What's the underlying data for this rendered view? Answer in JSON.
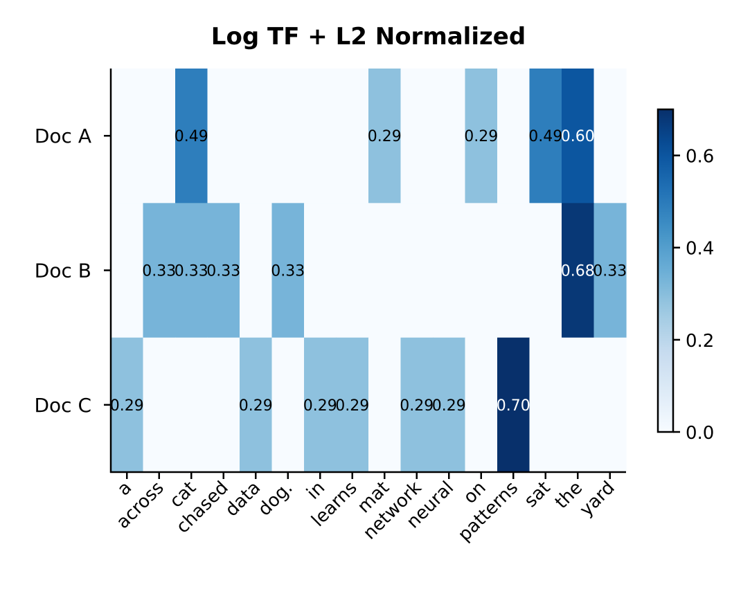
{
  "chart_data": {
    "type": "heatmap",
    "title": "Log TF + L2 Normalized",
    "rows": [
      "Doc A",
      "Doc B",
      "Doc C"
    ],
    "columns": [
      "a",
      "across",
      "cat",
      "chased",
      "data",
      "dog.",
      "in",
      "learns",
      "mat",
      "network",
      "neural",
      "on",
      "patterns",
      "sat",
      "the",
      "yard"
    ],
    "values": [
      [
        0,
        0,
        0.49,
        0,
        0,
        0,
        0,
        0,
        0.29,
        0,
        0,
        0.29,
        0,
        0.49,
        0.6,
        0
      ],
      [
        0,
        0.33,
        0.33,
        0.33,
        0,
        0.33,
        0,
        0,
        0,
        0,
        0,
        0,
        0,
        0,
        0.68,
        0.33
      ],
      [
        0.29,
        0,
        0,
        0,
        0.29,
        0,
        0.29,
        0.29,
        0,
        0.29,
        0.29,
        0,
        0.7,
        0,
        0,
        0
      ]
    ],
    "labels": [
      [
        "",
        "",
        "0.49",
        "",
        "",
        "",
        "",
        "",
        "0.29",
        "",
        "",
        "0.29",
        "",
        "0.49",
        "0.60",
        ""
      ],
      [
        "",
        "0.33",
        "0.33",
        "0.33",
        "",
        "0.33",
        "",
        "",
        "",
        "",
        "",
        "",
        "",
        "",
        "0.68",
        "0.33"
      ],
      [
        "0.29",
        "",
        "",
        "",
        "0.29",
        "",
        "0.29",
        "0.29",
        "",
        "0.29",
        "0.29",
        "",
        "0.70",
        "",
        "",
        ""
      ]
    ],
    "colormap": "Blues",
    "vmin": 0,
    "vmax": 0.7,
    "colorbar_ticks": [
      "0.0",
      "0.2",
      "0.4",
      "0.6"
    ],
    "colorbar_tick_values": [
      0,
      0.2,
      0.4,
      0.6
    ],
    "label_color_dark": "#000000",
    "label_color_light": "#ffffff"
  }
}
